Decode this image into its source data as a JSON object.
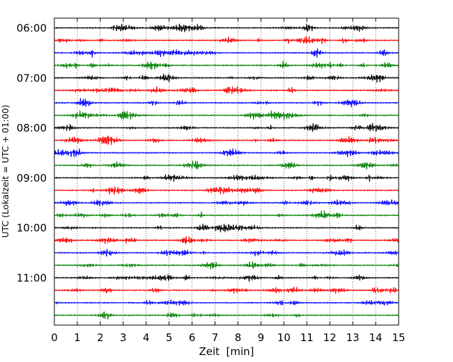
{
  "chart_data": {
    "type": "line",
    "title": "",
    "xlabel": "Zeit  [min]",
    "ylabel": "UTC (Lokalzeit = UTC + 01:00)",
    "xlim": [
      0,
      15
    ],
    "x_ticks": [
      "0",
      "1",
      "2",
      "3",
      "4",
      "5",
      "6",
      "7",
      "8",
      "9",
      "10",
      "11",
      "12",
      "13",
      "14",
      "15"
    ],
    "y_tick_labels": [
      "06:00",
      "07:00",
      "08:00",
      "09:00",
      "10:00",
      "11:00"
    ],
    "y_tick_rows": [
      0,
      4,
      8,
      12,
      16,
      20
    ],
    "grid_x": true,
    "legend": "none",
    "trace_count": 24,
    "trace_interval_min": 15,
    "start_time_utc": "06:00",
    "color_cycle": [
      "#000000",
      "#ff0000",
      "#0000ff",
      "#008000"
    ]
  }
}
